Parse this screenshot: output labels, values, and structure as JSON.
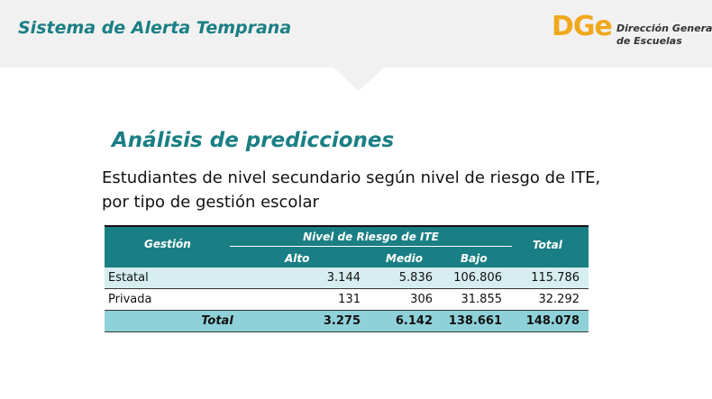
{
  "header": {
    "title": "Sistema de Alerta Temprana",
    "logo": {
      "mark": "DGe",
      "line1": "Dirección General",
      "line2": "de Escuelas"
    }
  },
  "section_title": "Análisis de predicciones",
  "subtitle": [
    "Estudiantes de nivel secundario según nivel de riesgo de ITE,",
    "por tipo de gestión escolar"
  ],
  "table": {
    "header": {
      "gestion": "Gestión",
      "group": "Nivel de Riesgo de ITE",
      "columns": [
        "Alto",
        "Medio",
        "Bajo"
      ],
      "total": "Total"
    },
    "rows": [
      [
        "Estatal",
        "3.144",
        "5.836",
        "106.806",
        "115.786"
      ],
      [
        "Privada",
        "131",
        "306",
        "31.855",
        "32.292"
      ]
    ],
    "total_row": [
      "Total",
      "3.275",
      "6.142",
      "138.661",
      "148.078"
    ]
  }
}
